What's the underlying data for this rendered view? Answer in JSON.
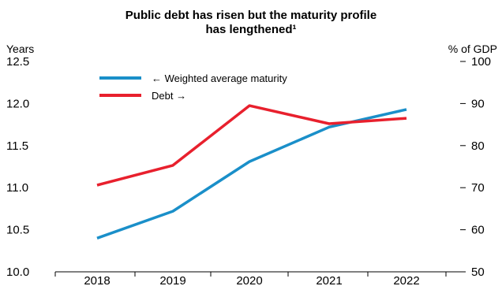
{
  "chart_data": {
    "type": "line",
    "title_line1": "Public debt has risen but the maturity profile",
    "title_line2": "has lengthened¹",
    "left_axis_label": "Years",
    "right_axis_label": "% of GDP",
    "categories": [
      "2018",
      "2019",
      "2020",
      "2021",
      "2022"
    ],
    "left_ylim": [
      10.0,
      12.5
    ],
    "left_ticks": [
      "10.0",
      "10.5",
      "11.0",
      "11.5",
      "12.0",
      "12.5"
    ],
    "right_ylim": [
      50,
      100
    ],
    "right_ticks": [
      "50",
      "60",
      "70",
      "80",
      "90",
      "100"
    ],
    "grid": false,
    "legend_position": "top-left",
    "series": [
      {
        "name": "← Weighted average maturity",
        "axis": "left",
        "color": "#1a8fc9",
        "values": [
          10.4,
          10.72,
          11.31,
          11.72,
          11.93
        ]
      },
      {
        "name": "Debt →",
        "axis": "right",
        "color": "#e8202d",
        "values": [
          70.6,
          75.3,
          89.5,
          85.2,
          86.5
        ]
      }
    ]
  }
}
